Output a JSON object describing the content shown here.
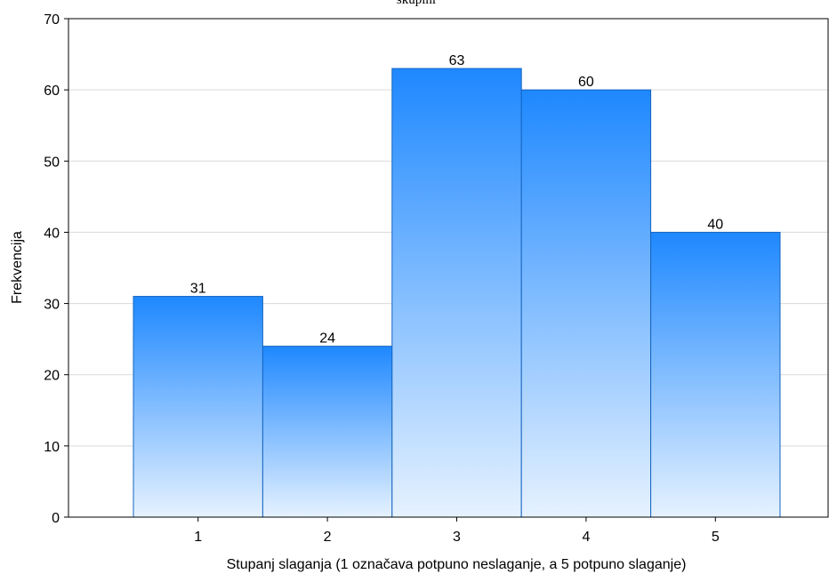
{
  "chart_data": {
    "type": "bar",
    "title": "skupini",
    "xlabel": "Stupanj slaganja (1 označava potpuno neslaganje, a 5 potpuno slaganje)",
    "ylabel": "Frekvencija",
    "categories": [
      "1",
      "2",
      "3",
      "4",
      "5"
    ],
    "values": [
      31,
      24,
      63,
      60,
      40
    ],
    "data_labels": [
      "31",
      "24",
      "63",
      "60",
      "40"
    ],
    "ylim": [
      0,
      70
    ],
    "yticks": [
      0,
      10,
      20,
      30,
      40,
      50,
      60,
      70
    ],
    "ytick_labels": [
      "0",
      "10",
      "20",
      "30",
      "40",
      "50",
      "60",
      "70"
    ],
    "grid": "horizontal",
    "legend": "none",
    "colors": {
      "bar_top": "#1e88ff",
      "bar_bottom": "#e6f2ff",
      "bar_stroke": "#1565c0",
      "grid": "#d9d9d9",
      "axis": "#000000"
    }
  }
}
